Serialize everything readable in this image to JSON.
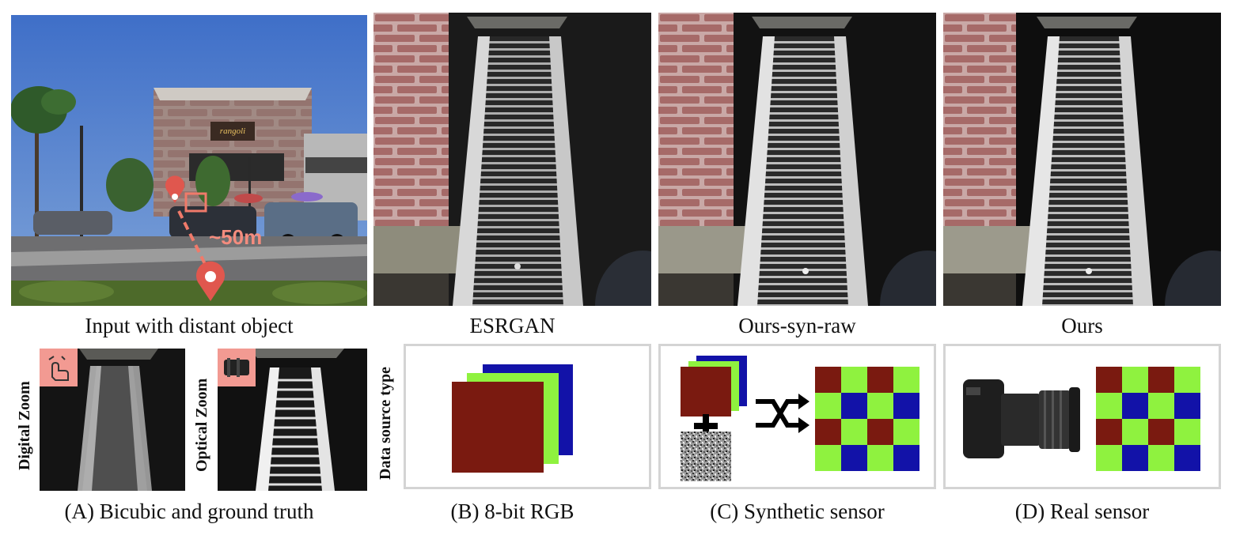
{
  "top_captions": {
    "input": "Input with distant object",
    "esrgan": "ESRGAN",
    "ours_syn_raw": "Ours-syn-raw",
    "ours": "Ours"
  },
  "scene": {
    "store_sign": "rangoli",
    "distance_label": "~50m"
  },
  "zoom_labels": {
    "digital": "Digital Zoom",
    "optical": "Optical Zoom"
  },
  "data_source_label": "Data source type",
  "bottom_captions": {
    "a": "(A) Bicubic and ground truth",
    "b": "(B) 8-bit RGB",
    "c": "(C) Synthetic sensor",
    "d": "(D) Real sensor"
  },
  "colors": {
    "red": "#7a1a10",
    "green": "#8ff23f",
    "blue": "#1212a8",
    "badge": "#f29a92",
    "border": "#d4d4d4"
  }
}
